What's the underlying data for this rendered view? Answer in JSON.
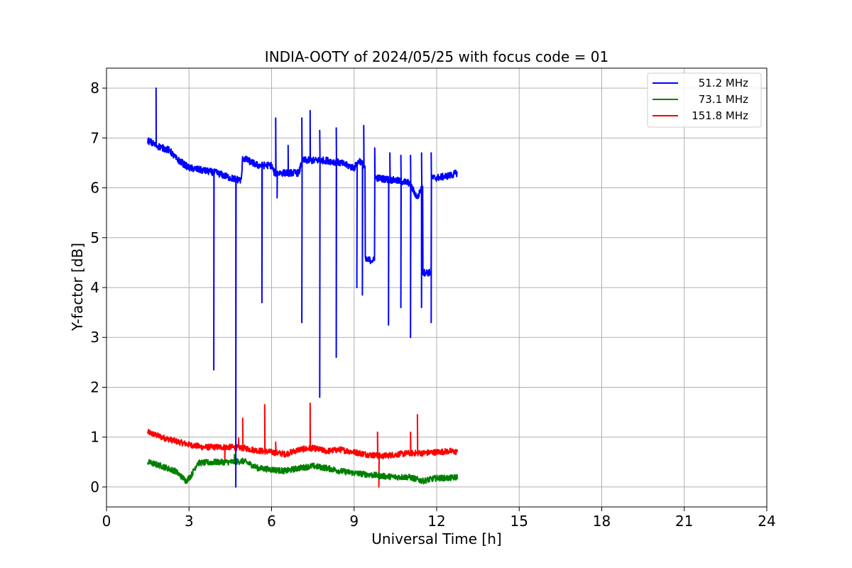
{
  "chart_data": {
    "type": "line",
    "title": "INDIA-OOTY of 2024/05/25 with focus code = 01",
    "xlabel": "Universal Time [h]",
    "ylabel": "Y-factor [dB]",
    "xlim": [
      0,
      24
    ],
    "ylim": [
      -0.4,
      8.4
    ],
    "xticks": [
      "0",
      "3",
      "6",
      "9",
      "12",
      "15",
      "18",
      "21",
      "24"
    ],
    "yticks": [
      "0",
      "1",
      "2",
      "3",
      "4",
      "5",
      "6",
      "7",
      "8"
    ],
    "grid": true,
    "legend_position": "top-right",
    "series": [
      {
        "name": "51.2 MHz",
        "color": "#0000ff",
        "baseline": [
          [
            1.5,
            6.95
          ],
          [
            1.8,
            6.85
          ],
          [
            2.3,
            6.75
          ],
          [
            2.5,
            6.6
          ],
          [
            3.0,
            6.4
          ],
          [
            3.5,
            6.35
          ],
          [
            4.0,
            6.3
          ],
          [
            4.5,
            6.2
          ],
          [
            4.9,
            6.15
          ],
          [
            4.95,
            6.6
          ],
          [
            5.5,
            6.45
          ],
          [
            6.0,
            6.45
          ],
          [
            6.1,
            6.3
          ],
          [
            7.0,
            6.3
          ],
          [
            7.1,
            6.55
          ],
          [
            8.0,
            6.55
          ],
          [
            8.5,
            6.5
          ],
          [
            9.0,
            6.4
          ],
          [
            9.2,
            6.55
          ],
          [
            9.4,
            6.4
          ],
          [
            9.6,
            6.3
          ],
          [
            9.8,
            6.2
          ],
          [
            10.5,
            6.15
          ],
          [
            11.0,
            6.1
          ],
          [
            11.3,
            5.8
          ],
          [
            11.6,
            6.2
          ],
          [
            12.0,
            6.2
          ],
          [
            12.5,
            6.25
          ],
          [
            12.75,
            6.3
          ]
        ],
        "spikes": [
          [
            1.8,
            8.0
          ],
          [
            3.9,
            2.35
          ],
          [
            4.7,
            0.0
          ],
          [
            5.65,
            3.7
          ],
          [
            6.15,
            7.4
          ],
          [
            6.2,
            5.8
          ],
          [
            6.6,
            6.85
          ],
          [
            7.1,
            7.4
          ],
          [
            7.1,
            3.3
          ],
          [
            7.4,
            7.55
          ],
          [
            7.75,
            1.8
          ],
          [
            7.75,
            7.15
          ],
          [
            8.35,
            2.6
          ],
          [
            8.35,
            7.2
          ],
          [
            9.1,
            4.0
          ],
          [
            9.3,
            3.85
          ],
          [
            9.35,
            7.25
          ],
          [
            9.75,
            6.8
          ],
          [
            10.25,
            3.25
          ],
          [
            10.3,
            6.7
          ],
          [
            10.7,
            3.6
          ],
          [
            10.7,
            6.65
          ],
          [
            11.05,
            3.0
          ],
          [
            11.05,
            6.65
          ],
          [
            11.45,
            3.6
          ],
          [
            11.45,
            6.7
          ],
          [
            11.8,
            3.3
          ],
          [
            11.8,
            6.7
          ]
        ],
        "plateaus": [
          [
            9.4,
            9.75,
            4.55
          ],
          [
            11.5,
            11.8,
            4.3
          ]
        ]
      },
      {
        "name": "73.1 MHz",
        "color": "#008000",
        "baseline": [
          [
            1.5,
            0.5
          ],
          [
            2.0,
            0.42
          ],
          [
            2.5,
            0.32
          ],
          [
            2.9,
            0.12
          ],
          [
            3.1,
            0.25
          ],
          [
            3.3,
            0.48
          ],
          [
            4.0,
            0.5
          ],
          [
            4.5,
            0.5
          ],
          [
            5.0,
            0.52
          ],
          [
            5.5,
            0.38
          ],
          [
            6.0,
            0.35
          ],
          [
            6.5,
            0.32
          ],
          [
            7.0,
            0.38
          ],
          [
            7.5,
            0.42
          ],
          [
            8.0,
            0.38
          ],
          [
            8.5,
            0.32
          ],
          [
            9.0,
            0.28
          ],
          [
            9.5,
            0.25
          ],
          [
            10.0,
            0.22
          ],
          [
            10.5,
            0.2
          ],
          [
            11.0,
            0.2
          ],
          [
            11.5,
            0.12
          ],
          [
            12.0,
            0.18
          ],
          [
            12.5,
            0.18
          ],
          [
            12.75,
            0.2
          ]
        ],
        "spikes": [
          [
            4.65,
            0.65
          ]
        ]
      },
      {
        "name": "151.8 MHz",
        "color": "#ff0000",
        "baseline": [
          [
            1.5,
            1.1
          ],
          [
            2.0,
            1.0
          ],
          [
            2.5,
            0.92
          ],
          [
            3.0,
            0.85
          ],
          [
            3.5,
            0.8
          ],
          [
            4.0,
            0.8
          ],
          [
            4.5,
            0.8
          ],
          [
            5.0,
            0.78
          ],
          [
            5.5,
            0.73
          ],
          [
            6.0,
            0.7
          ],
          [
            6.5,
            0.66
          ],
          [
            7.0,
            0.75
          ],
          [
            7.5,
            0.78
          ],
          [
            8.0,
            0.72
          ],
          [
            8.5,
            0.75
          ],
          [
            9.0,
            0.7
          ],
          [
            9.5,
            0.65
          ],
          [
            10.0,
            0.62
          ],
          [
            10.5,
            0.65
          ],
          [
            11.0,
            0.68
          ],
          [
            11.5,
            0.68
          ],
          [
            12.0,
            0.7
          ],
          [
            12.5,
            0.72
          ],
          [
            12.75,
            0.7
          ]
        ],
        "spikes": [
          [
            4.3,
            0.5
          ],
          [
            4.8,
            0.98
          ],
          [
            4.95,
            1.38
          ],
          [
            5.75,
            1.65
          ],
          [
            6.15,
            0.9
          ],
          [
            7.4,
            1.68
          ],
          [
            9.85,
            1.1
          ],
          [
            9.9,
            0.0
          ],
          [
            11.05,
            1.1
          ],
          [
            11.3,
            1.45
          ]
        ]
      }
    ]
  }
}
